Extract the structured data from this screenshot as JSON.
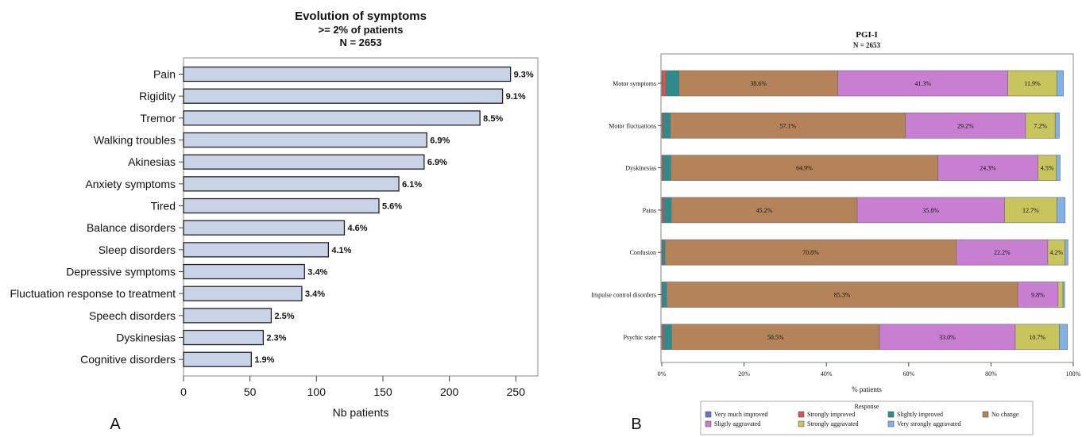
{
  "panels": {
    "a_letter": "A",
    "b_letter": "B"
  },
  "chart_data": [
    {
      "type": "bar",
      "orientation": "horizontal",
      "title": "Evolution of symptoms",
      "subtitle": ">= 2% of patients",
      "subtitle2": "N = 2653",
      "xlabel": "Nb patients",
      "ylabel": "",
      "xlim": [
        0,
        260
      ],
      "xticks": [
        0,
        50,
        100,
        150,
        200,
        250
      ],
      "grid": false,
      "categories": [
        "Pain",
        "Rigidity",
        "Tremor",
        "Walking troubles",
        "Akinesias",
        "Anxiety symptoms",
        "Tired",
        "Balance disorders",
        "Sleep disorders",
        "Depressive symptoms",
        "Fluctuation response to treatment",
        "Speech disorders",
        "Dyskinesias",
        "Cognitive disorders"
      ],
      "values": [
        246,
        240,
        223,
        183,
        181,
        162,
        147,
        121,
        109,
        91,
        89,
        66,
        60,
        51
      ],
      "data_labels": [
        "9.3%",
        "9.1%",
        "8.5%",
        "6.9%",
        "6.9%",
        "6.1%",
        "5.6%",
        "4.6%",
        "4.1%",
        "3.4%",
        "3.4%",
        "2.5%",
        "2.3%",
        "1.9%"
      ],
      "colors": {
        "bar_fill": "#c8d3e8",
        "bar_stroke": "#222222"
      }
    },
    {
      "type": "bar",
      "orientation": "horizontal",
      "stacked": true,
      "title": "PGI-I",
      "subtitle": "N = 2653",
      "xlabel": "% patients",
      "ylabel": "",
      "xlim": [
        0,
        100
      ],
      "xticks": [
        "0%",
        "20%",
        "40%",
        "60%",
        "80%",
        "100%"
      ],
      "grid": false,
      "legend_title": "Response",
      "legend_position": "bottom",
      "categories": [
        "Motor symptoms",
        "Motor fluctuations",
        "Dyskinesias",
        "Pains",
        "Confusion",
        "Impulse control disorders",
        "Psychic state"
      ],
      "series": [
        {
          "name": "Very much improved",
          "color": "#6b72c9",
          "values": [
            0.1,
            0.1,
            0.1,
            0.1,
            0.1,
            0.1,
            0.1
          ]
        },
        {
          "name": "Strongly improved",
          "color": "#d9534f",
          "values": [
            0.9,
            0.3,
            0.3,
            0.4,
            0.1,
            0.1,
            0.4
          ]
        },
        {
          "name": "Slightly improved",
          "color": "#2e8b8b",
          "values": [
            3.2,
            1.7,
            1.8,
            1.8,
            0.6,
            1.0,
            1.9
          ]
        },
        {
          "name": "No change",
          "color": "#b5835a",
          "values": [
            38.6,
            57.1,
            64.9,
            45.2,
            70.8,
            85.3,
            50.5
          ]
        },
        {
          "name": "Sligtly aggravated",
          "color": "#c97fd1",
          "values": [
            41.3,
            29.2,
            24.3,
            35.8,
            22.2,
            9.8,
            33.0
          ]
        },
        {
          "name": "Strongly aggravated",
          "color": "#c8c45e",
          "values": [
            11.9,
            7.2,
            4.5,
            12.7,
            4.2,
            1.2,
            10.7
          ]
        },
        {
          "name": "Very strongly aggravated",
          "color": "#7fb2e5",
          "values": [
            1.6,
            1.0,
            0.9,
            2.0,
            0.7,
            0.4,
            2.0
          ]
        }
      ],
      "data_labels": [
        [
          "",
          "",
          "",
          "38.6%",
          "41.3%",
          "11.9%",
          ""
        ],
        [
          "",
          "",
          "",
          "57.1%",
          "29.2%",
          "7.2%",
          ""
        ],
        [
          "",
          "",
          "",
          "64.9%",
          "24.3%",
          "4.5%",
          ""
        ],
        [
          "",
          "",
          "",
          "45.2%",
          "35.8%",
          "12.7%",
          ""
        ],
        [
          "",
          "",
          "",
          "70.8%",
          "22.2%",
          "4.2%",
          ""
        ],
        [
          "",
          "",
          "",
          "85.3%",
          "9.8%",
          "",
          ""
        ],
        [
          "",
          "",
          "",
          "50.5%",
          "33.0%",
          "10.7%",
          ""
        ]
      ],
      "legend_order": [
        "Very much improved",
        "Strongly improved",
        "Slightly improved",
        "No change",
        "Sligtly aggravated",
        "Strongly aggravated",
        "Very strongly aggravated"
      ]
    }
  ]
}
